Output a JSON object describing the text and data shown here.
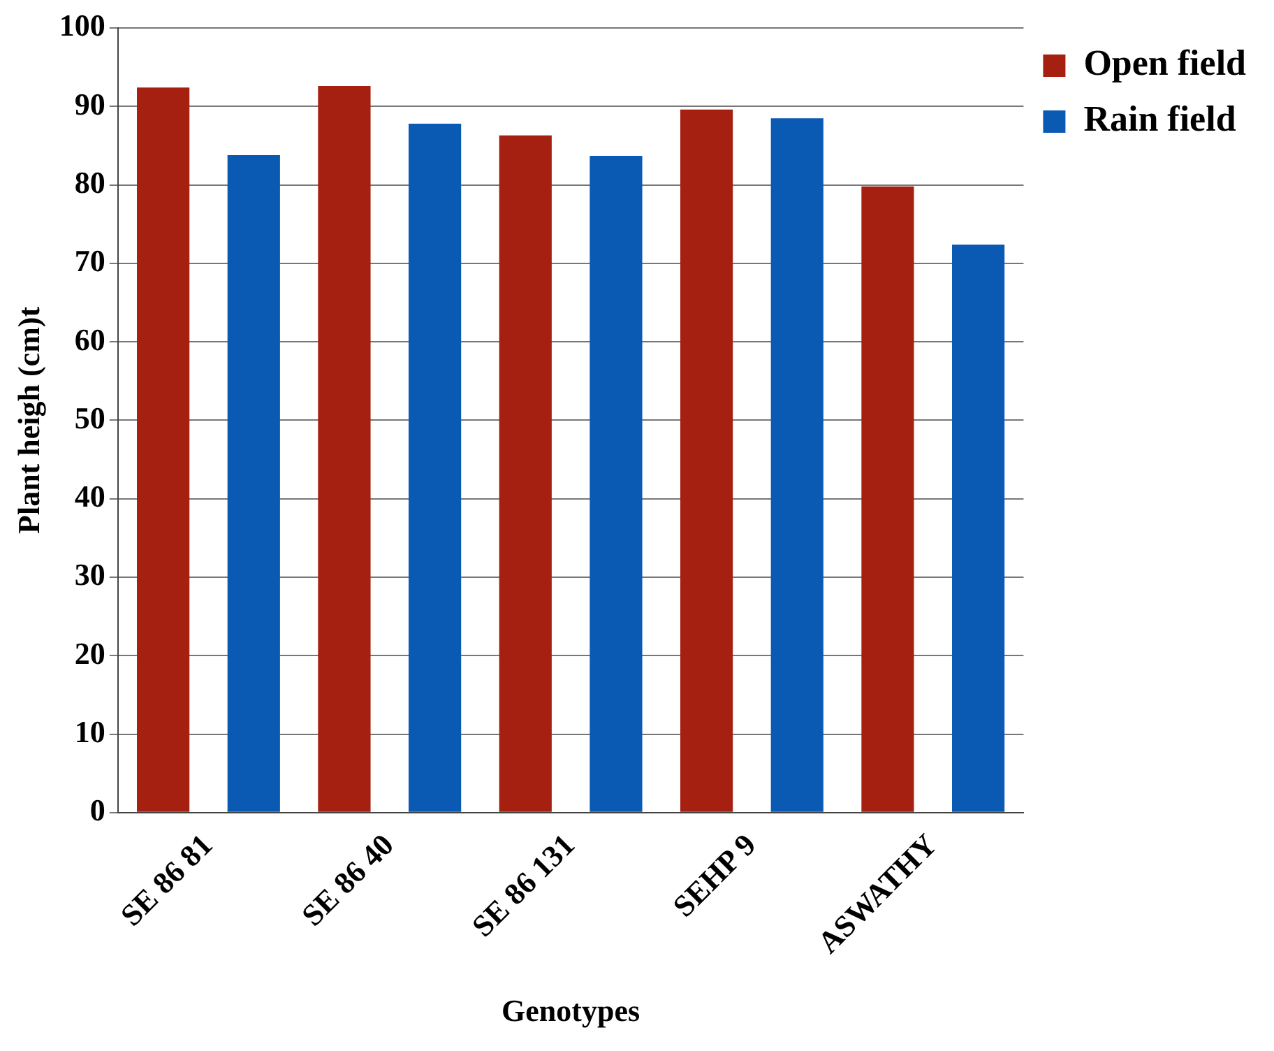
{
  "chart_data": {
    "type": "bar",
    "xlabel": "Genotypes",
    "ylabel": "Plant heigh (cm)t",
    "categories": [
      "SE 86 81",
      "SE 86 40",
      "SE 86 131",
      "SEHP 9",
      "ASWATHY"
    ],
    "series": [
      {
        "name": "Open field",
        "color": "#a52010",
        "values": [
          92.4,
          92.6,
          86.3,
          89.6,
          79.8
        ]
      },
      {
        "name": "Rain field",
        "color": "#0a5ab4",
        "values": [
          83.8,
          87.8,
          83.7,
          88.5,
          72.4
        ]
      }
    ],
    "ylim": [
      0,
      100
    ],
    "yticks": [
      0,
      10,
      20,
      30,
      40,
      50,
      60,
      70,
      80,
      90,
      100
    ],
    "grid": "y",
    "legend": "top right"
  }
}
